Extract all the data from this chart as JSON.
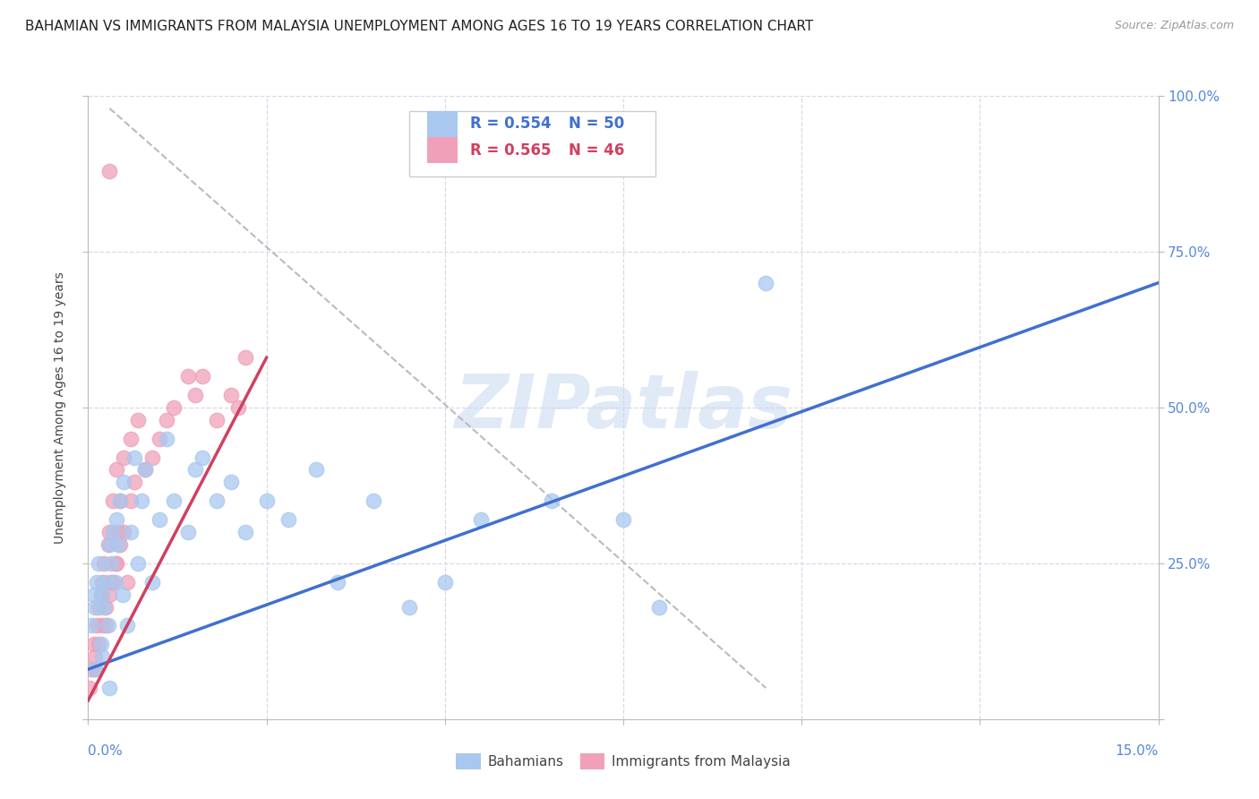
{
  "title": "BAHAMIAN VS IMMIGRANTS FROM MALAYSIA UNEMPLOYMENT AMONG AGES 16 TO 19 YEARS CORRELATION CHART",
  "source": "Source: ZipAtlas.com",
  "ylabel_label": "Unemployment Among Ages 16 to 19 years",
  "xmin": 0.0,
  "xmax": 15.0,
  "ymin": 0.0,
  "ymax": 100.0,
  "legend_blue_r": "R = 0.554",
  "legend_blue_n": "N = 50",
  "legend_pink_r": "R = 0.565",
  "legend_pink_n": "N = 46",
  "legend_label_blue": "Bahamians",
  "legend_label_pink": "Immigrants from Malaysia",
  "blue_color": "#A8C8F0",
  "pink_color": "#F0A0B8",
  "blue_line_color": "#4070D0",
  "pink_line_color": "#D04060",
  "ref_line_color": "#BBBBBB",
  "watermark": "ZIPatlas",
  "watermark_color": "#C8D8F0",
  "blue_scatter_x": [
    0.05,
    0.08,
    0.1,
    0.12,
    0.15,
    0.18,
    0.2,
    0.22,
    0.25,
    0.28,
    0.3,
    0.32,
    0.35,
    0.38,
    0.4,
    0.42,
    0.45,
    0.48,
    0.5,
    0.55,
    0.6,
    0.65,
    0.7,
    0.75,
    0.8,
    0.9,
    1.0,
    1.1,
    1.2,
    1.4,
    1.5,
    1.6,
    1.8,
    2.0,
    2.2,
    2.5,
    2.8,
    3.2,
    3.5,
    4.0,
    4.5,
    5.0,
    5.5,
    6.5,
    7.5,
    8.0,
    9.5,
    0.1,
    0.2,
    0.3
  ],
  "blue_scatter_y": [
    15,
    20,
    18,
    22,
    25,
    12,
    20,
    18,
    22,
    15,
    28,
    25,
    30,
    22,
    32,
    28,
    35,
    20,
    38,
    15,
    30,
    42,
    25,
    35,
    40,
    22,
    32,
    45,
    35,
    30,
    40,
    42,
    35,
    38,
    30,
    35,
    32,
    40,
    22,
    35,
    18,
    22,
    32,
    35,
    32,
    18,
    70,
    8,
    10,
    5
  ],
  "pink_scatter_x": [
    0.02,
    0.05,
    0.08,
    0.1,
    0.12,
    0.15,
    0.18,
    0.2,
    0.22,
    0.25,
    0.28,
    0.3,
    0.32,
    0.35,
    0.38,
    0.4,
    0.42,
    0.45,
    0.5,
    0.55,
    0.6,
    0.65,
    0.7,
    0.8,
    0.9,
    1.0,
    1.1,
    1.2,
    1.4,
    1.5,
    1.6,
    1.8,
    2.0,
    2.2,
    0.1,
    0.15,
    0.2,
    0.25,
    0.3,
    0.35,
    0.4,
    0.45,
    0.5,
    0.6,
    0.3,
    2.1
  ],
  "pink_scatter_y": [
    5,
    8,
    12,
    10,
    15,
    18,
    20,
    22,
    25,
    15,
    28,
    30,
    22,
    35,
    25,
    40,
    30,
    35,
    42,
    22,
    45,
    38,
    48,
    40,
    42,
    45,
    48,
    50,
    55,
    52,
    55,
    48,
    52,
    58,
    8,
    12,
    15,
    18,
    20,
    22,
    25,
    28,
    30,
    35,
    88,
    50
  ],
  "ytick_positions": [
    0,
    25,
    50,
    75,
    100
  ],
  "ytick_labels_right": [
    "",
    "25.0%",
    "50.0%",
    "75.0%",
    "100.0%"
  ],
  "grid_color": "#D8D8E8",
  "bg_color": "#FFFFFF",
  "title_fontsize": 11,
  "axis_label_color": "#5588DD",
  "blue_line_x": [
    0,
    15
  ],
  "blue_line_y": [
    8,
    70
  ],
  "pink_line_x": [
    0,
    2.5
  ],
  "pink_line_y": [
    3,
    58
  ],
  "ref_line_x": [
    0.3,
    9.5
  ],
  "ref_line_y": [
    98,
    5
  ]
}
